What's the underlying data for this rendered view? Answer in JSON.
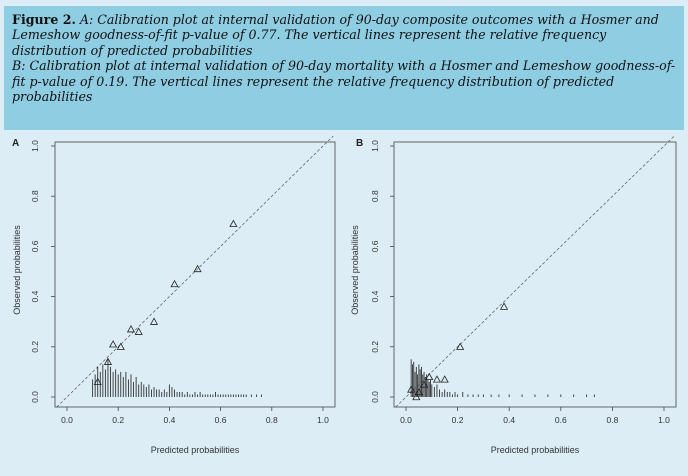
{
  "caption": {
    "figure_label": "Figure 2.",
    "line_a": "A: Calibration plot at internal validation of 90-day composite outcomes with a Hosmer and Lemeshow goodness-of-fit p-value of 0.77. The vertical lines represent the relative frequency distribution of predicted probabilities",
    "line_b": "B: Calibration plot at internal validation of 90-day mortality with a Hosmer and Lemeshow goodness-of-fit p-value of 0.19. The vertical lines represent the relative frequency distribution of predicted probabilities"
  },
  "chart_data": [
    {
      "panel_label": "A",
      "type": "scatter",
      "xlabel": "Predicted probabilities",
      "ylabel": "Observed probabilities",
      "xlim": [
        0,
        1
      ],
      "ylim": [
        0,
        1
      ],
      "x_ticks": [
        "0.0",
        "0.2",
        "0.4",
        "0.6",
        "0.8",
        "1.0"
      ],
      "y_ticks": [
        "0.0",
        "0.2",
        "0.4",
        "0.6",
        "0.8",
        "1.0"
      ],
      "reference_line": "dashed diagonal y = x",
      "points": [
        {
          "x": 0.12,
          "y": 0.06
        },
        {
          "x": 0.16,
          "y": 0.14
        },
        {
          "x": 0.18,
          "y": 0.21
        },
        {
          "x": 0.21,
          "y": 0.2
        },
        {
          "x": 0.25,
          "y": 0.27
        },
        {
          "x": 0.28,
          "y": 0.26
        },
        {
          "x": 0.34,
          "y": 0.3
        },
        {
          "x": 0.42,
          "y": 0.45
        },
        {
          "x": 0.51,
          "y": 0.51
        },
        {
          "x": 0.65,
          "y": 0.69
        }
      ],
      "distribution": {
        "x": [
          0.1,
          0.11,
          0.12,
          0.13,
          0.14,
          0.15,
          0.16,
          0.17,
          0.18,
          0.19,
          0.2,
          0.21,
          0.22,
          0.23,
          0.24,
          0.25,
          0.26,
          0.27,
          0.28,
          0.29,
          0.3,
          0.31,
          0.32,
          0.33,
          0.34,
          0.35,
          0.36,
          0.37,
          0.38,
          0.39,
          0.4,
          0.41,
          0.42,
          0.43,
          0.44,
          0.45,
          0.46,
          0.47,
          0.48,
          0.49,
          0.5,
          0.51,
          0.52,
          0.53,
          0.54,
          0.55,
          0.56,
          0.57,
          0.58,
          0.59,
          0.6,
          0.61,
          0.62,
          0.63,
          0.64,
          0.65,
          0.66,
          0.67,
          0.68,
          0.69,
          0.7,
          0.72,
          0.74,
          0.76
        ],
        "height": [
          0.07,
          0.09,
          0.12,
          0.1,
          0.13,
          0.11,
          0.15,
          0.12,
          0.1,
          0.11,
          0.09,
          0.1,
          0.08,
          0.1,
          0.07,
          0.09,
          0.06,
          0.08,
          0.05,
          0.06,
          0.05,
          0.04,
          0.05,
          0.03,
          0.04,
          0.03,
          0.03,
          0.02,
          0.03,
          0.02,
          0.05,
          0.04,
          0.03,
          0.02,
          0.02,
          0.02,
          0.01,
          0.02,
          0.01,
          0.01,
          0.02,
          0.01,
          0.02,
          0.01,
          0.01,
          0.01,
          0.01,
          0.01,
          0.02,
          0.01,
          0.01,
          0.01,
          0.01,
          0.01,
          0.01,
          0.01,
          0.01,
          0.01,
          0.01,
          0.01,
          0.01,
          0.01,
          0.01,
          0.01
        ]
      }
    },
    {
      "panel_label": "B",
      "type": "scatter",
      "xlabel": "Predicted probabilities",
      "ylabel": "Observed probabilities",
      "xlim": [
        0,
        1
      ],
      "ylim": [
        0,
        1
      ],
      "x_ticks": [
        "0.0",
        "0.2",
        "0.4",
        "0.6",
        "0.8",
        "1.0"
      ],
      "y_ticks": [
        "0.0",
        "0.2",
        "0.4",
        "0.6",
        "0.8",
        "1.0"
      ],
      "reference_line": "dashed diagonal y = x",
      "points": [
        {
          "x": 0.02,
          "y": 0.03
        },
        {
          "x": 0.04,
          "y": 0.0
        },
        {
          "x": 0.05,
          "y": 0.02
        },
        {
          "x": 0.07,
          "y": 0.05
        },
        {
          "x": 0.09,
          "y": 0.08
        },
        {
          "x": 0.12,
          "y": 0.07
        },
        {
          "x": 0.15,
          "y": 0.07
        },
        {
          "x": 0.21,
          "y": 0.2
        },
        {
          "x": 0.38,
          "y": 0.36
        }
      ],
      "distribution": {
        "x": [
          0.02,
          0.025,
          0.03,
          0.035,
          0.04,
          0.045,
          0.05,
          0.055,
          0.06,
          0.065,
          0.07,
          0.075,
          0.08,
          0.085,
          0.09,
          0.095,
          0.1,
          0.11,
          0.12,
          0.13,
          0.14,
          0.15,
          0.16,
          0.17,
          0.18,
          0.19,
          0.2,
          0.22,
          0.24,
          0.26,
          0.28,
          0.3,
          0.33,
          0.36,
          0.4,
          0.45,
          0.5,
          0.55,
          0.6,
          0.65,
          0.7,
          0.73
        ],
        "height": [
          0.15,
          0.13,
          0.14,
          0.1,
          0.12,
          0.09,
          0.13,
          0.11,
          0.12,
          0.09,
          0.1,
          0.08,
          0.09,
          0.07,
          0.06,
          0.07,
          0.05,
          0.04,
          0.05,
          0.03,
          0.02,
          0.03,
          0.02,
          0.02,
          0.01,
          0.02,
          0.01,
          0.02,
          0.01,
          0.01,
          0.01,
          0.01,
          0.01,
          0.01,
          0.01,
          0.01,
          0.01,
          0.01,
          0.01,
          0.01,
          0.01,
          0.01
        ]
      }
    }
  ]
}
